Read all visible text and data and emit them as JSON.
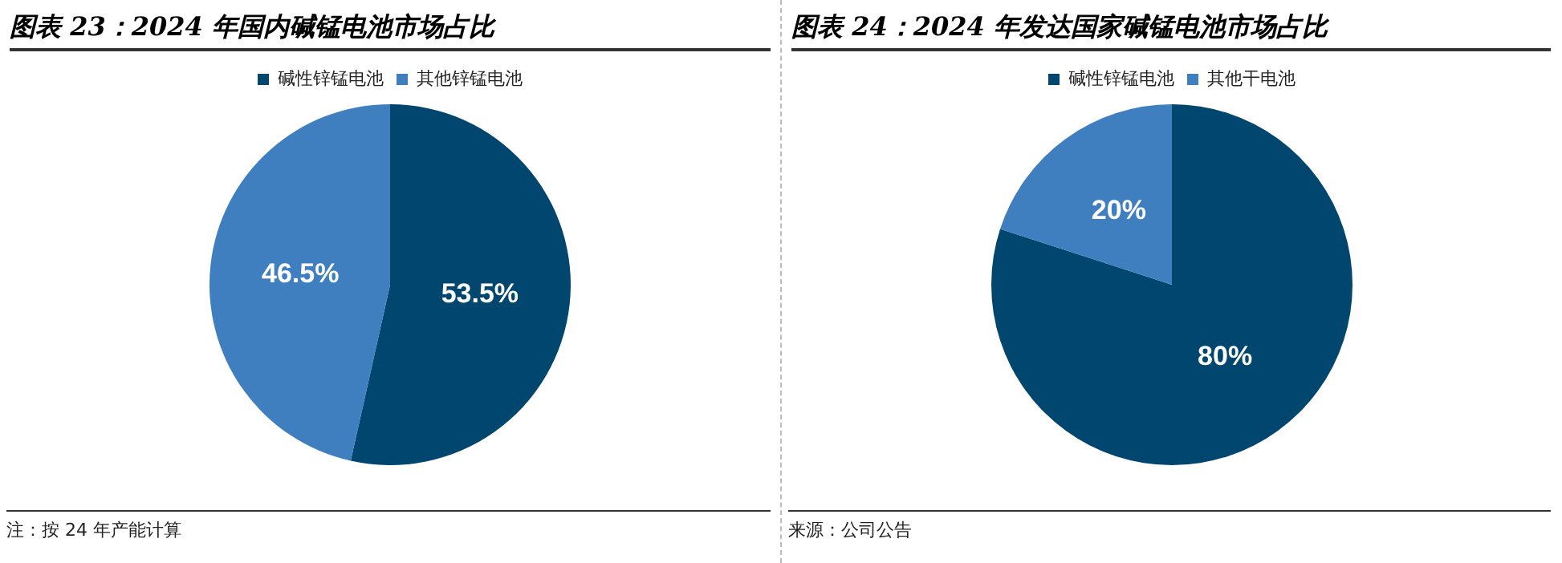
{
  "chart_data": [
    {
      "type": "pie",
      "title": "图表 23：2024 年国内碱锰电池市场占比",
      "categories": [
        "碱性锌锰电池",
        "其他锌锰电池"
      ],
      "values": [
        53.5,
        46.5
      ],
      "colors": [
        "#00466e",
        "#3f7fbf"
      ],
      "value_labels": [
        "53.5%",
        "46.5%"
      ],
      "legend": "top",
      "annotations": [
        "注：按 24 年产能计算"
      ]
    },
    {
      "type": "pie",
      "title": "图表 24：2024 年发达国家碱锰电池市场占比",
      "categories": [
        "碱性锌锰电池",
        "其他干电池"
      ],
      "values": [
        80,
        20
      ],
      "colors": [
        "#00466e",
        "#3f7fbf"
      ],
      "value_labels": [
        "80%",
        "20%"
      ],
      "legend": "top",
      "annotations": [
        "来源：公司公告"
      ]
    }
  ]
}
